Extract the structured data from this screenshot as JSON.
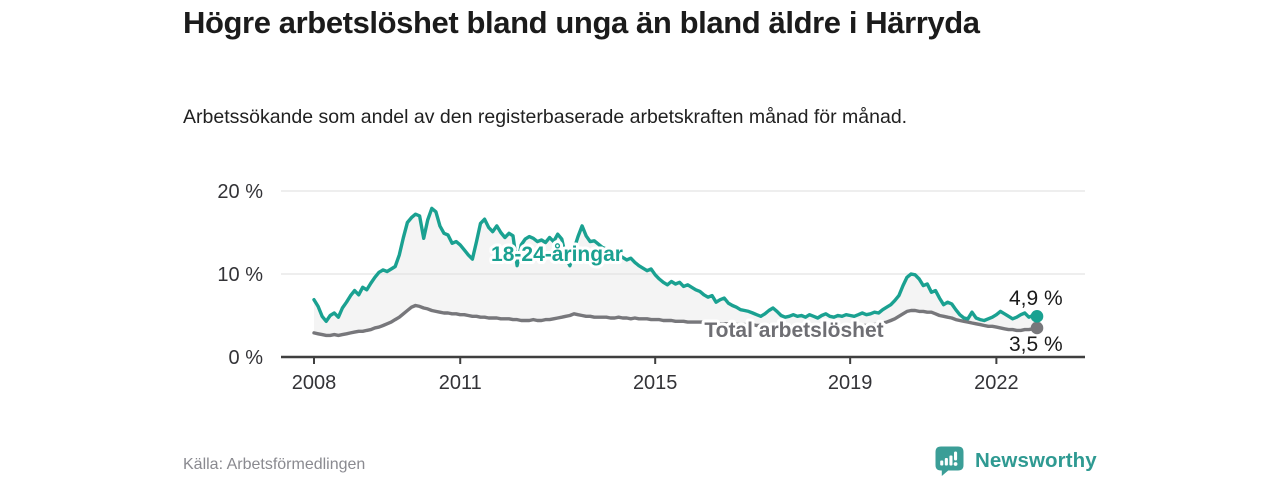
{
  "header": {
    "title": "Högre arbetslöshet bland unga än bland äldre i Härryda",
    "subtitle": "Arbetssökande som andel av den registerbaserade arbetskraften månad för månad."
  },
  "footer": {
    "source": "Källa: Arbetsförmedlingen",
    "brand": "Newsworthy"
  },
  "colors": {
    "accent_teal": "#1aa191",
    "line_gray": "#77777b",
    "fill_between": "#f4f4f4",
    "gridline": "#dedede",
    "axis": "#3f3f3f",
    "brand_teal": "#2f9a92"
  },
  "chart_data": {
    "type": "line",
    "title": "Högre arbetslöshet bland unga än bland äldre i Härryda",
    "subtitle": "Arbetssökande som andel av den registerbaserade arbetskraften månad för månad.",
    "x_unit": "month",
    "x_range": "2008-01 to 2022-11",
    "grid": "horizontal",
    "legend_position": "inline-labels",
    "ylim": [
      0,
      21
    ],
    "x_ticks": [
      {
        "label": "2008",
        "year": 2008
      },
      {
        "label": "2011",
        "year": 2011
      },
      {
        "label": "2015",
        "year": 2015
      },
      {
        "label": "2019",
        "year": 2019
      },
      {
        "label": "2022",
        "year": 2022
      }
    ],
    "y_ticks": [
      {
        "label": "0 %",
        "value": 0
      },
      {
        "label": "10 %",
        "value": 10
      },
      {
        "label": "20 %",
        "value": 20
      }
    ],
    "fill_between_series": true,
    "series": [
      {
        "name": "18-24-åringar",
        "color": "#1aa191",
        "end_label": "4,9 %",
        "end_value": 4.9,
        "values": [
          6.9,
          6.1,
          4.9,
          4.3,
          5.0,
          5.3,
          4.8,
          5.9,
          6.6,
          7.4,
          8.0,
          7.5,
          8.4,
          8.1,
          8.9,
          9.6,
          10.2,
          10.5,
          10.3,
          10.6,
          10.9,
          12.3,
          14.4,
          16.2,
          16.8,
          17.2,
          17.0,
          14.3,
          16.5,
          17.9,
          17.5,
          15.8,
          14.9,
          14.7,
          13.7,
          13.9,
          13.5,
          12.9,
          12.3,
          11.8,
          13.9,
          16.1,
          16.6,
          15.6,
          15.1,
          15.8,
          15.0,
          14.4,
          14.9,
          14.6,
          11.0,
          13.5,
          14.2,
          14.5,
          14.3,
          13.9,
          14.1,
          13.8,
          14.4,
          13.9,
          14.8,
          14.2,
          12.0,
          11.0,
          13.0,
          14.5,
          15.8,
          14.6,
          13.9,
          14.0,
          13.6,
          13.2,
          13.0,
          12.4,
          11.8,
          12.3,
          12.0,
          11.7,
          11.9,
          11.4,
          11.0,
          10.7,
          10.4,
          10.6,
          9.9,
          9.4,
          9.0,
          8.7,
          9.1,
          8.8,
          9.0,
          8.5,
          8.7,
          8.4,
          8.1,
          7.9,
          7.5,
          7.2,
          7.4,
          6.6,
          6.9,
          7.1,
          6.5,
          6.2,
          6.0,
          5.7,
          5.6,
          5.5,
          5.3,
          5.1,
          4.9,
          5.2,
          5.6,
          5.9,
          5.5,
          5.0,
          4.8,
          4.9,
          5.1,
          4.9,
          5.0,
          4.8,
          5.1,
          4.9,
          4.7,
          5.0,
          5.2,
          4.9,
          4.8,
          5.0,
          4.9,
          5.1,
          5.0,
          4.9,
          5.1,
          5.3,
          5.1,
          5.2,
          5.4,
          5.3,
          5.7,
          6.0,
          6.3,
          6.8,
          7.4,
          8.6,
          9.6,
          10.0,
          9.9,
          9.4,
          8.6,
          8.8,
          7.8,
          8.0,
          7.1,
          6.3,
          6.6,
          6.4,
          5.7,
          5.1,
          4.7,
          4.6,
          5.4,
          4.7,
          4.5,
          4.4,
          4.6,
          4.8,
          5.1,
          5.5,
          5.2,
          4.9,
          4.6,
          4.8,
          5.1,
          5.3,
          4.8,
          5.0,
          4.9
        ]
      },
      {
        "name": "Total arbetslöshet",
        "color": "#77777b",
        "end_label": "3,5 %",
        "end_value": 3.5,
        "values": [
          2.9,
          2.8,
          2.7,
          2.6,
          2.6,
          2.7,
          2.6,
          2.7,
          2.8,
          2.9,
          3.0,
          3.1,
          3.1,
          3.2,
          3.3,
          3.5,
          3.6,
          3.8,
          4.0,
          4.2,
          4.5,
          4.8,
          5.2,
          5.6,
          6.0,
          6.2,
          6.1,
          5.9,
          5.8,
          5.6,
          5.5,
          5.4,
          5.3,
          5.3,
          5.2,
          5.2,
          5.1,
          5.1,
          5.0,
          4.9,
          4.9,
          4.8,
          4.8,
          4.7,
          4.7,
          4.7,
          4.6,
          4.6,
          4.6,
          4.5,
          4.5,
          4.4,
          4.4,
          4.4,
          4.5,
          4.4,
          4.4,
          4.5,
          4.5,
          4.6,
          4.7,
          4.8,
          4.9,
          5.0,
          5.2,
          5.1,
          5.0,
          4.9,
          4.9,
          4.8,
          4.8,
          4.8,
          4.8,
          4.7,
          4.7,
          4.8,
          4.7,
          4.7,
          4.6,
          4.7,
          4.6,
          4.6,
          4.6,
          4.5,
          4.5,
          4.5,
          4.4,
          4.4,
          4.4,
          4.3,
          4.3,
          4.3,
          4.2,
          4.2,
          4.2,
          4.2,
          4.2,
          4.1,
          4.1,
          4.1,
          4.0,
          4.0,
          4.0,
          4.0,
          3.9,
          3.9,
          3.9,
          3.9,
          3.9,
          3.8,
          3.8,
          3.8,
          3.8,
          3.9,
          3.8,
          3.8,
          3.7,
          3.7,
          3.7,
          3.7,
          3.7,
          3.6,
          3.6,
          3.6,
          3.6,
          3.6,
          3.7,
          3.6,
          3.6,
          3.6,
          3.7,
          3.7,
          3.7,
          3.7,
          3.8,
          3.8,
          3.8,
          3.9,
          3.9,
          4.0,
          4.1,
          4.2,
          4.4,
          4.6,
          4.9,
          5.2,
          5.5,
          5.6,
          5.6,
          5.5,
          5.5,
          5.4,
          5.4,
          5.2,
          5.0,
          4.9,
          4.8,
          4.7,
          4.5,
          4.4,
          4.3,
          4.2,
          4.1,
          4.0,
          3.9,
          3.8,
          3.7,
          3.7,
          3.6,
          3.5,
          3.4,
          3.3,
          3.3,
          3.2,
          3.2,
          3.3,
          3.3,
          3.4,
          3.5
        ]
      }
    ]
  }
}
